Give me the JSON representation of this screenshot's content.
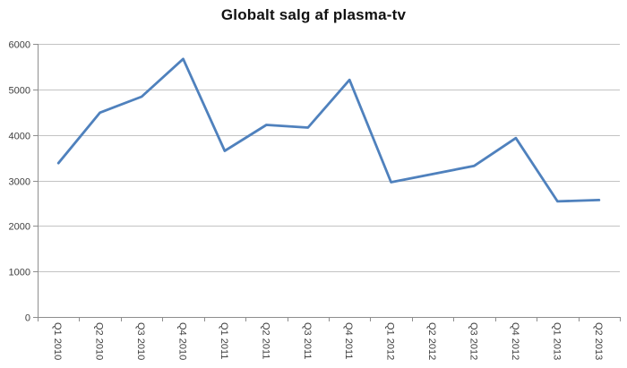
{
  "chart_data": {
    "type": "line",
    "title": "Globalt salg af plasma-tv",
    "categories": [
      "Q1 2010",
      "Q2 2010",
      "Q3 2010",
      "Q4 2010",
      "Q1 2011",
      "Q2 2011",
      "Q3 2011",
      "Q4 2011",
      "Q1 2012",
      "Q2 2012",
      "Q3 2012",
      "Q4 2012",
      "Q1 2013",
      "Q2 2013"
    ],
    "values": [
      3380,
      4490,
      4840,
      5670,
      3650,
      4220,
      4160,
      5210,
      2960,
      3140,
      3320,
      3930,
      2540,
      2570
    ],
    "series_name": "Globalt salg af plasma-tv",
    "xlabel": "",
    "ylabel": "",
    "ylim": [
      0,
      6000
    ],
    "y_ticks": [
      0,
      1000,
      2000,
      3000,
      4000,
      5000,
      6000
    ],
    "grid": true,
    "legend_position": "none",
    "x_label_rotation_deg": 90,
    "colors": {
      "line": "#4F81BD",
      "gridline": "#C3C3C3",
      "axis": "#8E8E8E",
      "tick": "#8E8E8E",
      "label_text": "#3F3F3F",
      "title_text": "#111111",
      "background": "#FFFFFF"
    }
  }
}
